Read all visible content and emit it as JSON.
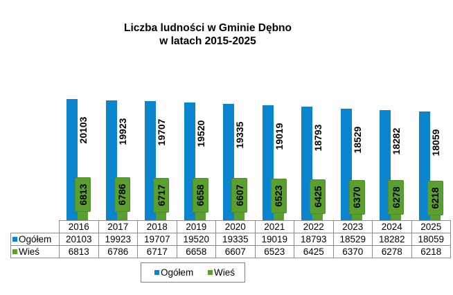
{
  "chart": {
    "title_line1": "Liczba ludności w Gminie Dębno",
    "title_line2": "w latach 2015-2025"
  },
  "legend": {
    "series1": "Ogółem",
    "series2": "Wieś"
  },
  "colors": {
    "ogolem": "#0a84cc",
    "wies": "#5aa030"
  },
  "table": {
    "row1_label": "Ogółem",
    "row2_label": "Wieś"
  },
  "chart_data": {
    "type": "bar",
    "title": "Liczba ludności w Gminie Dębno w latach 2015-2025",
    "categories": [
      "2016",
      "2017",
      "2018",
      "2019",
      "2020",
      "2021",
      "2022",
      "2023",
      "2024",
      "2025"
    ],
    "series": [
      {
        "name": "Ogółem",
        "color": "#0a84cc",
        "values": [
          20103,
          19923,
          19707,
          19520,
          19335,
          19019,
          18793,
          18529,
          18282,
          18059
        ]
      },
      {
        "name": "Wieś",
        "color": "#5aa030",
        "values": [
          6813,
          6786,
          6717,
          6658,
          6607,
          6523,
          6425,
          6370,
          6278,
          6218
        ]
      }
    ],
    "xlabel": "",
    "ylabel": "",
    "ylim": [
      0,
      25000
    ],
    "grid": false,
    "data_labels": true,
    "data_table": true,
    "legend_position": "bottom"
  }
}
